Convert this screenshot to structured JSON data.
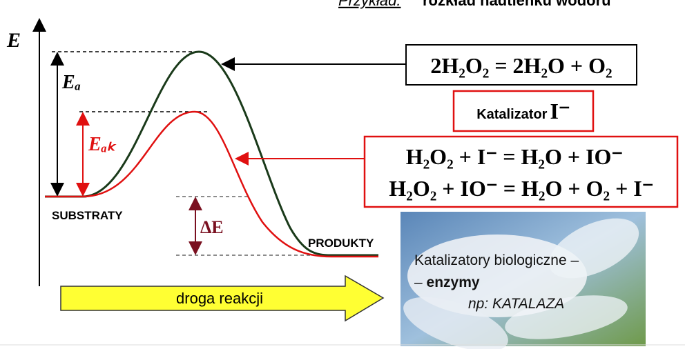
{
  "header": {
    "example_label": "Przykład:",
    "title": "rozkład nadtlenku wodoru"
  },
  "axis": {
    "y_label": "E",
    "x_label": "droga reakcji"
  },
  "labels": {
    "activation_energy": "Eₐ",
    "catalyzed_activation_energy": "Eₐₖ",
    "reaction_energy": "ΔE",
    "substrates": "SUBSTRATY",
    "products": "PRODUKTY"
  },
  "reaction": {
    "equation": "2H₂O₂ = 2H₂O + O₂"
  },
  "catalyst": {
    "label": "Katalizator",
    "ion": "I⁻",
    "equations": [
      "H₂O₂ + I⁻ = H₂O + IO⁻",
      "H₂O₂ + IO⁻ = H₂O + O₂ + I⁻"
    ]
  },
  "enzyme": {
    "line1": "Katalizatory biologiczne –",
    "line2_dash": "– ",
    "line2_bold": "enzymy",
    "example": "np: KATALAZA"
  }
}
